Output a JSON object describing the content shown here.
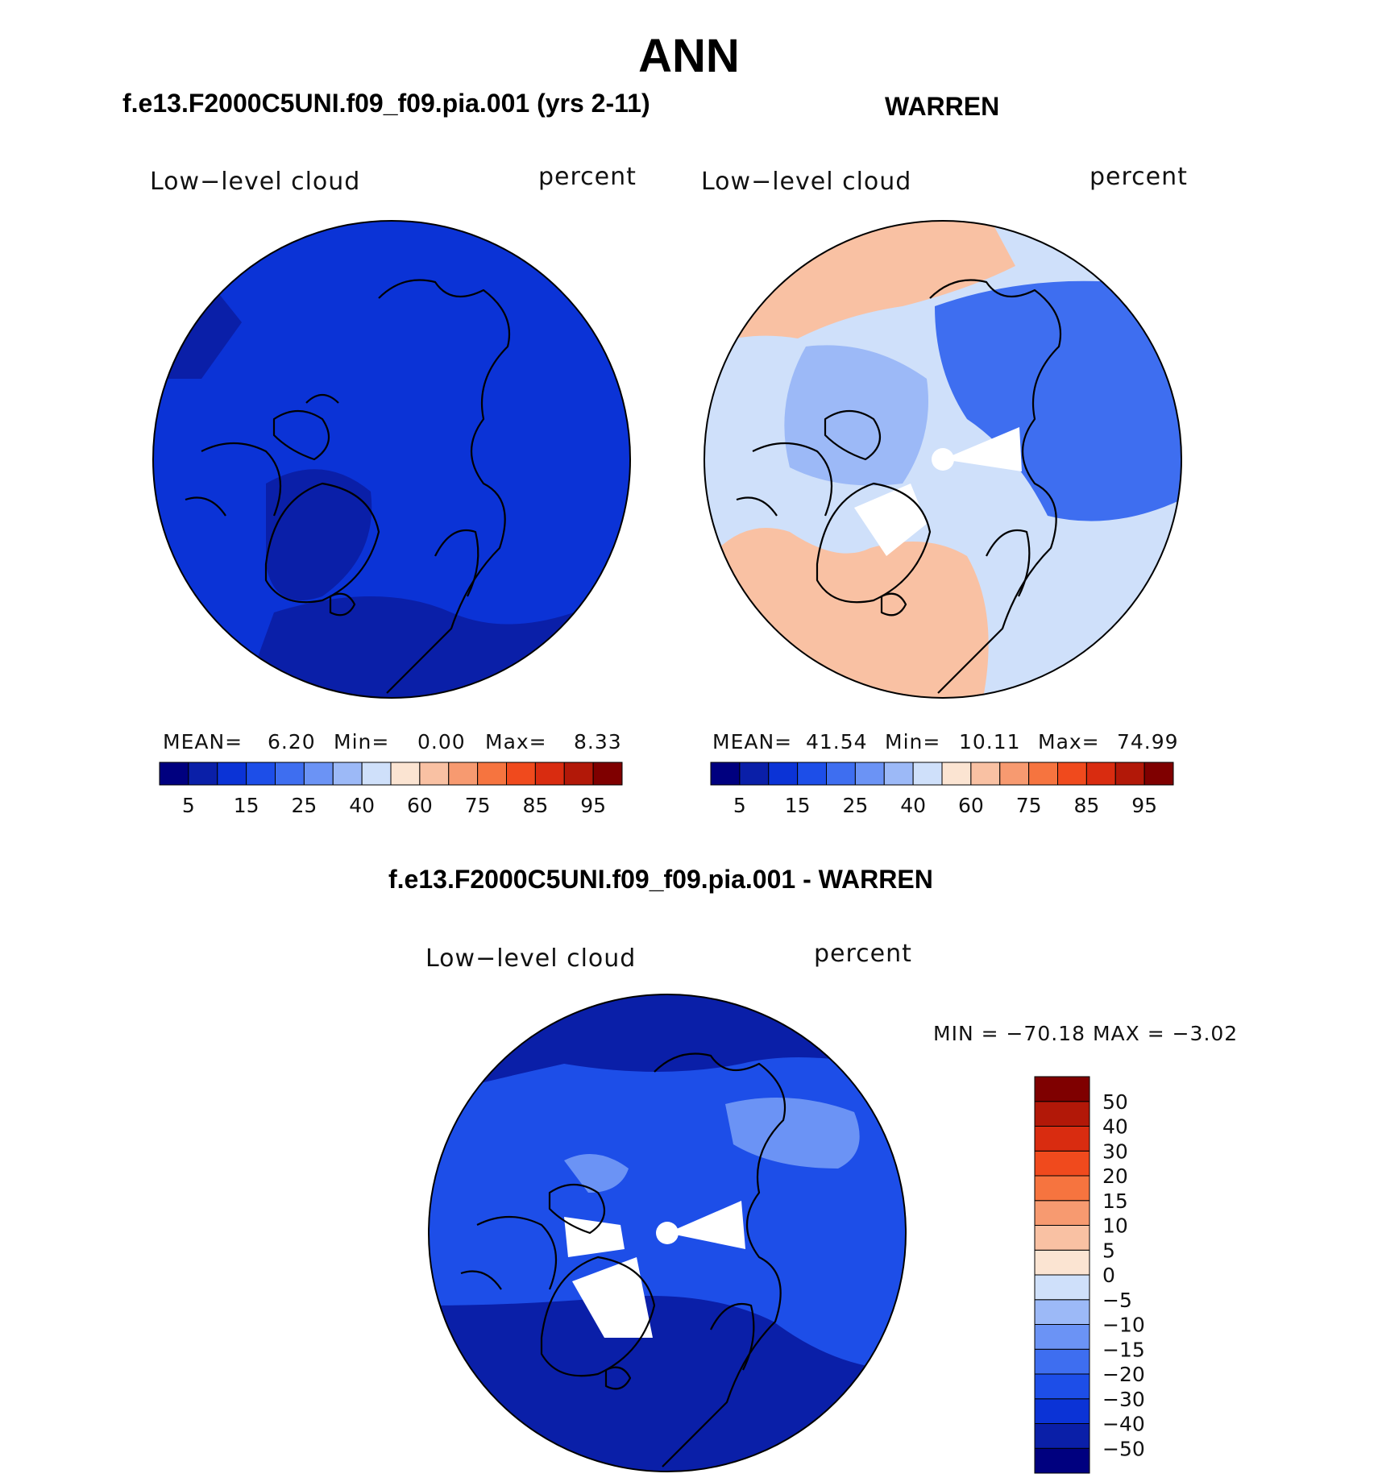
{
  "page": {
    "main_title": "ANN",
    "difference_title": "f.e13.F2000C5UNI.f09_f09.pia.001 - WARREN"
  },
  "panels": [
    {
      "id": "model",
      "title": "f.e13.F2000C5UNI.f09_f09.pia.001 (yrs 2-11)",
      "variable": "Low−level cloud",
      "units": "percent",
      "stats": {
        "mean_label": "MEAN=",
        "mean": "6.20",
        "min_label": "Min=",
        "min": "0.00",
        "max_label": "Max=",
        "max": "8.33"
      }
    },
    {
      "id": "obs",
      "title": "WARREN",
      "variable": "Low−level cloud",
      "units": "percent",
      "stats": {
        "mean_label": "MEAN=",
        "mean": "41.54",
        "min_label": "Min=",
        "min": "10.11",
        "max_label": "Max=",
        "max": "74.99"
      }
    },
    {
      "id": "diff",
      "variable": "Low−level cloud",
      "units": "percent",
      "stats": {
        "text": "MIN = −70.18  MAX =   −3.02"
      }
    }
  ],
  "colorbar_top": {
    "colors": [
      "#00007f",
      "#0a1fa8",
      "#0b33d6",
      "#1d4ee8",
      "#3e6ef0",
      "#6b93f5",
      "#9cb9f7",
      "#cfe0fa",
      "#fbe4d2",
      "#f9c1a3",
      "#f79a70",
      "#f6743f",
      "#f04a1d",
      "#d92c10",
      "#b21808",
      "#7f0000"
    ],
    "tick_labels": [
      "5",
      "15",
      "25",
      "40",
      "60",
      "75",
      "85",
      "95"
    ]
  },
  "colorbar_diff": {
    "colors": [
      "#00007f",
      "#0a1fa8",
      "#0b33d6",
      "#1d4ee8",
      "#3e6ef0",
      "#6b93f5",
      "#9cb9f7",
      "#cfe0fa",
      "#fbe4d2",
      "#f9c1a3",
      "#f79a70",
      "#f6743f",
      "#f04a1d",
      "#d92c10",
      "#b21808",
      "#7f0000"
    ],
    "tick_labels": [
      "−50",
      "−40",
      "−30",
      "−20",
      "−15",
      "−10",
      "−5",
      "0",
      "5",
      "10",
      "15",
      "20",
      "30",
      "40",
      "50"
    ]
  },
  "map_fill": {
    "model_base": "#0b33d6",
    "model_dark": "#0a1fa8",
    "obs_warm": "#f9c1a3",
    "obs_light": "#cfe0fa",
    "obs_mid": "#9cb9f7",
    "obs_blue": "#3e6ef0",
    "diff_base": "#1d4ee8",
    "diff_dark": "#0a1fa8",
    "diff_light": "#6b93f5"
  }
}
